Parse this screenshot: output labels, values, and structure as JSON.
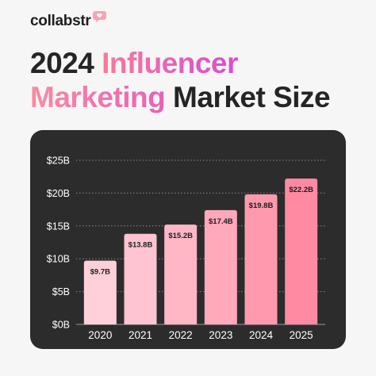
{
  "brand": {
    "name": "collabstr",
    "icon": "chat-hearts-icon",
    "accent": "#f8a3b5"
  },
  "title": {
    "line1_plain": "2024 ",
    "line1_highlight": "Influencer",
    "line2_highlight": "Marketing",
    "line2_plain": " Market Size"
  },
  "colors": {
    "card_bg": "#2c2c2c",
    "bar_colors": [
      "#ffd0da",
      "#ffc4d1",
      "#ffb7c6",
      "#ffa9bb",
      "#ff9aae",
      "#ff8aa2"
    ]
  },
  "chart_data": {
    "type": "bar",
    "categories": [
      "2020",
      "2021",
      "2022",
      "2023",
      "2024",
      "2025"
    ],
    "values": [
      9.7,
      13.8,
      15.2,
      17.4,
      19.8,
      22.2
    ],
    "data_labels": [
      "$9.7B",
      "$13.8B",
      "$15.2B",
      "$17.4B",
      "$19.8B",
      "$22.2B"
    ],
    "yticks": [
      0,
      5,
      10,
      15,
      20,
      25
    ],
    "ytick_labels": [
      "$0B",
      "$5B",
      "$10B",
      "$15B",
      "$20B",
      "$25B"
    ],
    "ylim": [
      0,
      25
    ],
    "grid": "dotted horizontal"
  }
}
